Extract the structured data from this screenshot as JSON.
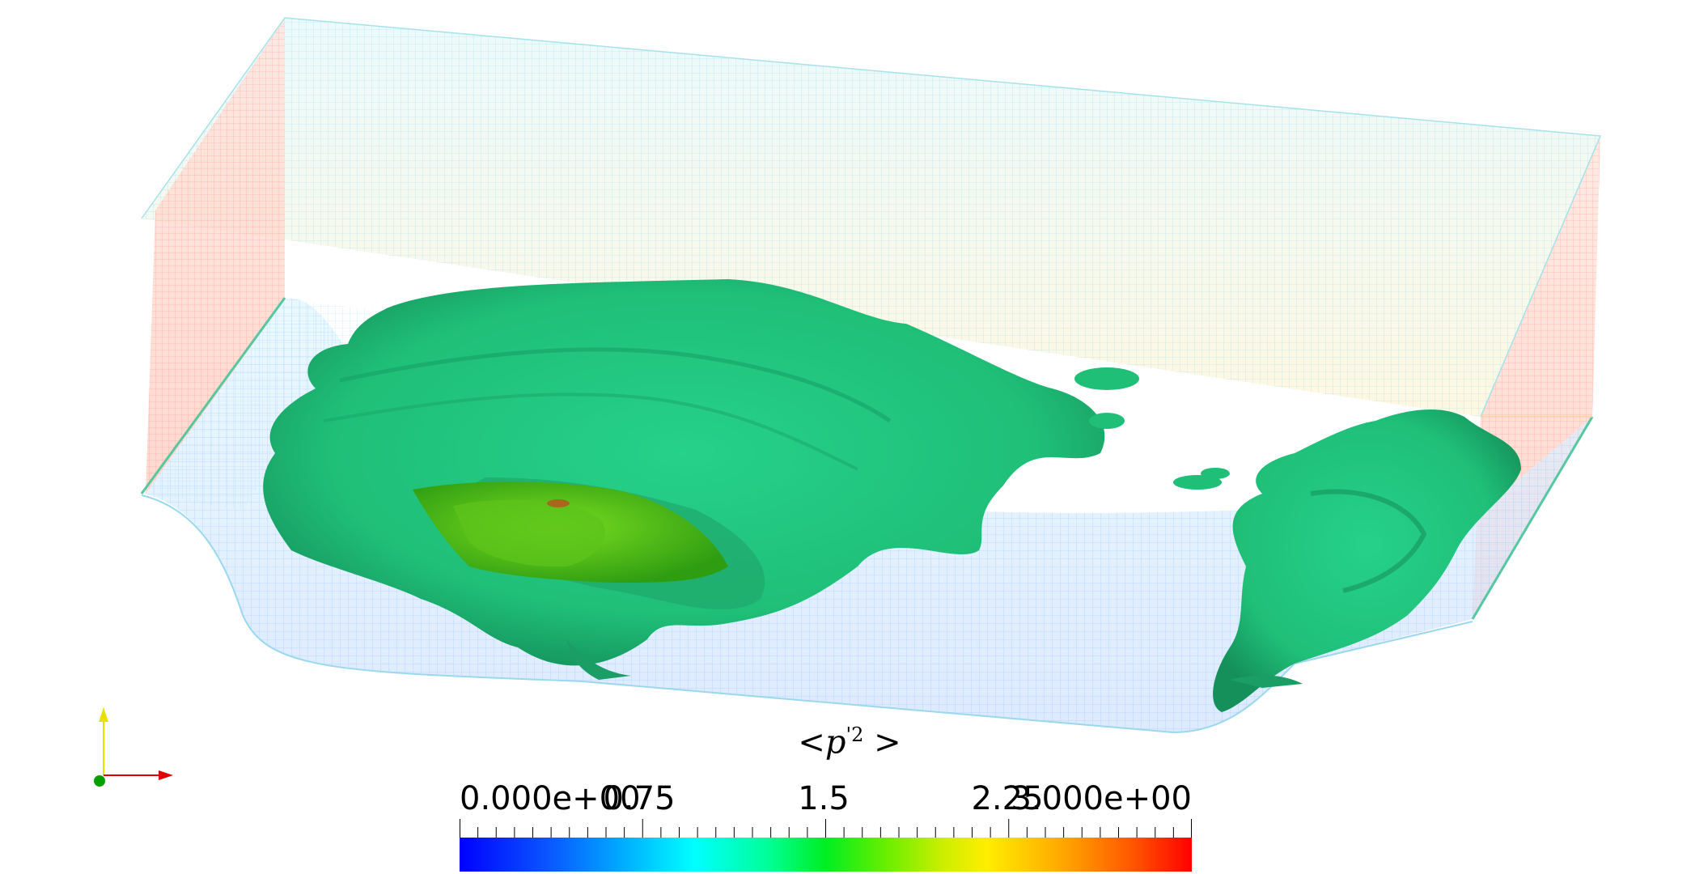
{
  "scalar_bar": {
    "title": "<p'2 >",
    "title_main": "<p",
    "title_sup": "'2",
    "title_end": " >",
    "labels": [
      "0.000e+00",
      "0.75",
      "1.5",
      "2.25",
      "3.000e+00"
    ],
    "range": [
      0,
      3
    ]
  },
  "colors": {
    "isosurface": "#1fc27a",
    "isosurface_inner": "#3fb81a",
    "axis_x": "#e00000",
    "axis_y": "#e8e000",
    "axis_z": "#00a000"
  },
  "icons": {
    "orientation": "orientation-axes-icon"
  }
}
